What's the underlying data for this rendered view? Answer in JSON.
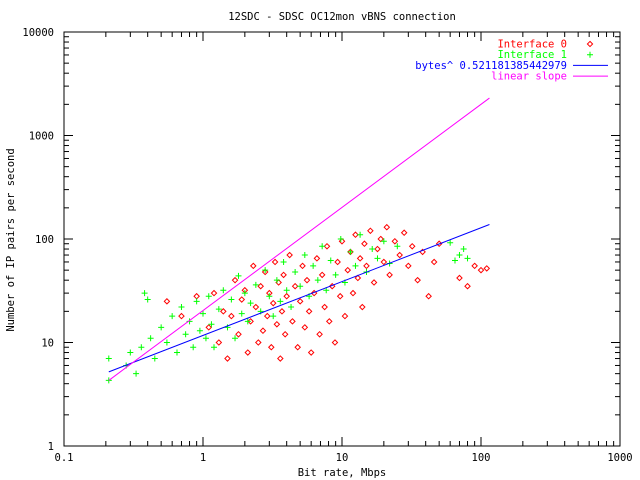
{
  "chart_data": {
    "type": "scatter",
    "title": "12SDC - SDSC OC12mon vBNS connection",
    "xlabel": "Bit rate, Mbps",
    "ylabel": "Number of IP pairs per second",
    "xscale": "log",
    "yscale": "log",
    "xlim": [
      0.1,
      1000
    ],
    "ylim": [
      1,
      10000
    ],
    "xticks": [
      "0.1",
      "1",
      "10",
      "100",
      "1000"
    ],
    "yticks": [
      "1",
      "10",
      "100",
      "1000",
      "10000"
    ],
    "legend_position": "top-right",
    "grid": false,
    "series": [
      {
        "name": "Interface 0",
        "kind": "points",
        "marker": "diamond",
        "color": "#ff0000",
        "points": [
          [
            0.55,
            25
          ],
          [
            0.7,
            18
          ],
          [
            0.9,
            28
          ],
          [
            1.1,
            14
          ],
          [
            1.2,
            30
          ],
          [
            1.3,
            10
          ],
          [
            1.4,
            20
          ],
          [
            1.5,
            7
          ],
          [
            1.6,
            18
          ],
          [
            1.7,
            40
          ],
          [
            1.8,
            12
          ],
          [
            1.9,
            26
          ],
          [
            2.0,
            32
          ],
          [
            2.1,
            8
          ],
          [
            2.2,
            16
          ],
          [
            2.3,
            55
          ],
          [
            2.4,
            22
          ],
          [
            2.5,
            10
          ],
          [
            2.6,
            35
          ],
          [
            2.7,
            13
          ],
          [
            2.8,
            48
          ],
          [
            2.9,
            18
          ],
          [
            3.0,
            30
          ],
          [
            3.1,
            9
          ],
          [
            3.2,
            24
          ],
          [
            3.3,
            60
          ],
          [
            3.4,
            15
          ],
          [
            3.5,
            38
          ],
          [
            3.6,
            7
          ],
          [
            3.7,
            20
          ],
          [
            3.8,
            45
          ],
          [
            3.9,
            12
          ],
          [
            4.0,
            28
          ],
          [
            4.2,
            70
          ],
          [
            4.4,
            16
          ],
          [
            4.6,
            35
          ],
          [
            4.8,
            9
          ],
          [
            5.0,
            25
          ],
          [
            5.2,
            55
          ],
          [
            5.4,
            14
          ],
          [
            5.6,
            40
          ],
          [
            5.8,
            20
          ],
          [
            6.0,
            8
          ],
          [
            6.3,
            30
          ],
          [
            6.6,
            65
          ],
          [
            6.9,
            12
          ],
          [
            7.2,
            45
          ],
          [
            7.5,
            22
          ],
          [
            7.8,
            85
          ],
          [
            8.1,
            16
          ],
          [
            8.5,
            35
          ],
          [
            8.9,
            10
          ],
          [
            9.3,
            60
          ],
          [
            9.7,
            28
          ],
          [
            10,
            95
          ],
          [
            10.5,
            18
          ],
          [
            11,
            50
          ],
          [
            11.5,
            75
          ],
          [
            12,
            30
          ],
          [
            12.5,
            110
          ],
          [
            13,
            42
          ],
          [
            13.5,
            65
          ],
          [
            14,
            22
          ],
          [
            14.5,
            90
          ],
          [
            15,
            55
          ],
          [
            16,
            120
          ],
          [
            17,
            38
          ],
          [
            18,
            80
          ],
          [
            19,
            100
          ],
          [
            20,
            60
          ],
          [
            21,
            130
          ],
          [
            22,
            45
          ],
          [
            24,
            95
          ],
          [
            26,
            70
          ],
          [
            28,
            115
          ],
          [
            30,
            55
          ],
          [
            32,
            85
          ],
          [
            35,
            40
          ],
          [
            38,
            75
          ],
          [
            42,
            28
          ],
          [
            46,
            60
          ],
          [
            50,
            90
          ],
          [
            70,
            42
          ],
          [
            80,
            35
          ],
          [
            90,
            55
          ],
          [
            100,
            50
          ],
          [
            110,
            52
          ]
        ]
      },
      {
        "name": "Interface 1",
        "kind": "points",
        "marker": "plus",
        "color": "#00ff00",
        "points": [
          [
            0.21,
            7
          ],
          [
            0.21,
            4.3
          ],
          [
            0.28,
            6
          ],
          [
            0.3,
            8
          ],
          [
            0.33,
            5
          ],
          [
            0.36,
            9
          ],
          [
            0.38,
            30
          ],
          [
            0.4,
            26
          ],
          [
            0.42,
            11
          ],
          [
            0.45,
            7
          ],
          [
            0.5,
            14
          ],
          [
            0.55,
            10
          ],
          [
            0.6,
            18
          ],
          [
            0.65,
            8
          ],
          [
            0.7,
            22
          ],
          [
            0.75,
            12
          ],
          [
            0.8,
            16
          ],
          [
            0.85,
            9
          ],
          [
            0.9,
            25
          ],
          [
            0.95,
            13
          ],
          [
            1.0,
            19
          ],
          [
            1.05,
            11
          ],
          [
            1.1,
            28
          ],
          [
            1.15,
            15
          ],
          [
            1.2,
            9
          ],
          [
            1.3,
            21
          ],
          [
            1.4,
            32
          ],
          [
            1.5,
            14
          ],
          [
            1.6,
            26
          ],
          [
            1.7,
            11
          ],
          [
            1.8,
            44
          ],
          [
            1.9,
            19
          ],
          [
            2.0,
            30
          ],
          [
            2.1,
            16
          ],
          [
            2.2,
            24
          ],
          [
            2.4,
            36
          ],
          [
            2.6,
            20
          ],
          [
            2.8,
            50
          ],
          [
            3.0,
            28
          ],
          [
            3.2,
            18
          ],
          [
            3.4,
            40
          ],
          [
            3.6,
            25
          ],
          [
            3.8,
            60
          ],
          [
            4.0,
            32
          ],
          [
            4.3,
            22
          ],
          [
            4.6,
            48
          ],
          [
            5.0,
            35
          ],
          [
            5.4,
            70
          ],
          [
            5.8,
            28
          ],
          [
            6.2,
            55
          ],
          [
            6.7,
            40
          ],
          [
            7.2,
            85
          ],
          [
            7.7,
            32
          ],
          [
            8.3,
            62
          ],
          [
            9.0,
            45
          ],
          [
            9.8,
            100
          ],
          [
            10.5,
            38
          ],
          [
            11.5,
            75
          ],
          [
            12.5,
            55
          ],
          [
            13.5,
            110
          ],
          [
            15,
            48
          ],
          [
            16.5,
            80
          ],
          [
            18,
            65
          ],
          [
            20,
            95
          ],
          [
            22,
            58
          ],
          [
            25,
            85
          ],
          [
            60,
            92
          ],
          [
            65,
            62
          ],
          [
            70,
            70
          ],
          [
            75,
            80
          ],
          [
            80,
            65
          ]
        ]
      },
      {
        "name": "bytes^ 0.521181385442979",
        "kind": "line",
        "color": "#0000ff",
        "points": [
          [
            0.21,
            5.2
          ],
          [
            115,
            138
          ]
        ]
      },
      {
        "name": "linear slope",
        "kind": "line",
        "color": "#ff00ff",
        "points": [
          [
            0.21,
            4.3
          ],
          [
            115,
            2300
          ]
        ]
      }
    ]
  }
}
